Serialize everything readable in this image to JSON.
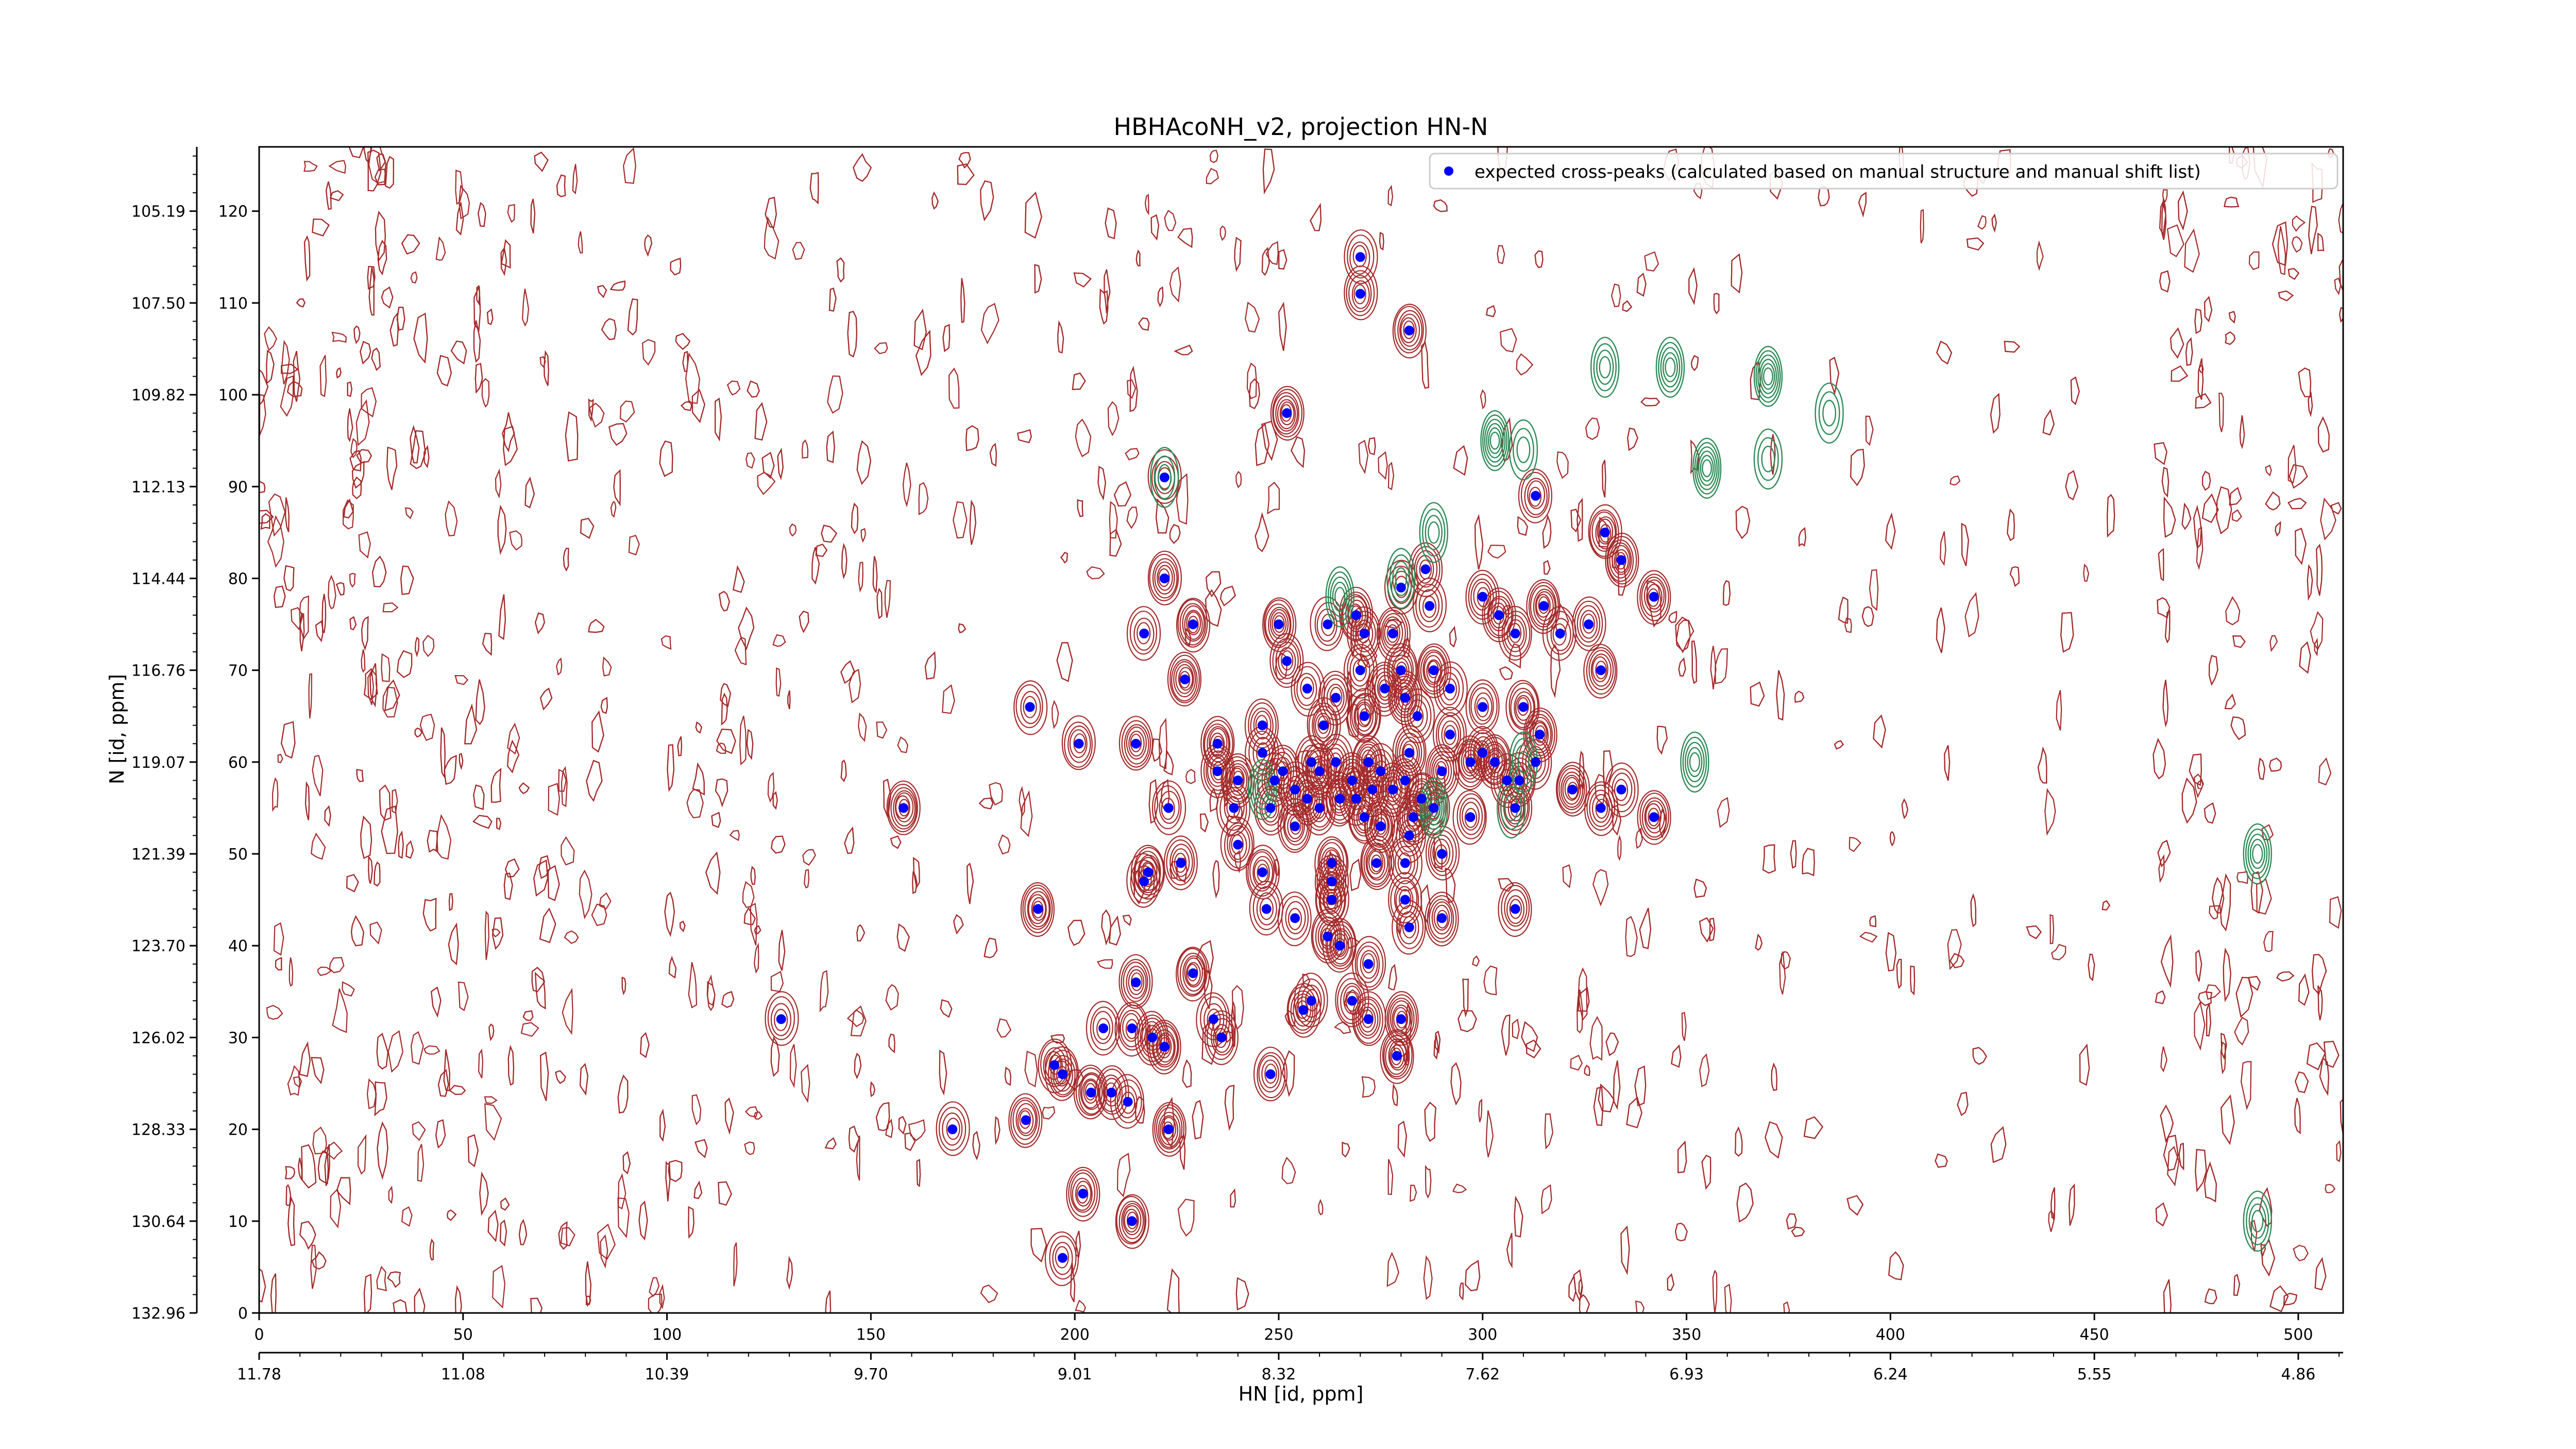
{
  "chart_data": {
    "type": "scatter",
    "title": "HBHAcoNH_v2, projection HN-N",
    "xlabel": "HN [id, ppm]",
    "ylabel": "N [id, ppm]",
    "x_index_ticks": [
      "0",
      "50",
      "100",
      "150",
      "200",
      "250",
      "300",
      "350",
      "400",
      "450",
      "500"
    ],
    "x_ppm_ticks": [
      "11.78",
      "11.08",
      "10.39",
      "9.70",
      "9.01",
      "8.32",
      "7.62",
      "6.93",
      "6.24",
      "5.55",
      "4.86"
    ],
    "y_index_ticks": [
      "0",
      "10",
      "20",
      "30",
      "40",
      "50",
      "60",
      "70",
      "80",
      "90",
      "100",
      "110",
      "120"
    ],
    "y_ppm_ticks": [
      "132.96",
      "130.64",
      "128.33",
      "126.02",
      "123.70",
      "121.39",
      "119.07",
      "116.76",
      "114.44",
      "112.13",
      "109.82",
      "107.50",
      "105.19"
    ],
    "xlim": [
      0,
      511
    ],
    "ylim": [
      0,
      127
    ],
    "grid": false,
    "legend": {
      "position": "top-right",
      "entries": [
        "expected cross-peaks (calculated based on manual structure and manual shift list)"
      ]
    },
    "colors": {
      "points": "#0000ff",
      "contour_positive": "#a52a2a",
      "contour_negative": "#2e8b57"
    },
    "series": [
      {
        "name": "expected cross-peaks (calculated based on manual structure and manual shift list)",
        "points": [
          [
            270,
            115
          ],
          [
            270,
            111
          ],
          [
            282,
            107
          ],
          [
            252,
            98
          ],
          [
            222,
            91
          ],
          [
            313,
            89
          ],
          [
            330,
            85
          ],
          [
            334,
            82
          ],
          [
            280,
            79
          ],
          [
            286,
            81
          ],
          [
            222,
            80
          ],
          [
            269,
            76
          ],
          [
            287,
            77
          ],
          [
            300,
            78
          ],
          [
            304,
            76
          ],
          [
            315,
            77
          ],
          [
            319,
            74
          ],
          [
            326,
            75
          ],
          [
            342,
            78
          ],
          [
            250,
            75
          ],
          [
            262,
            75
          ],
          [
            271,
            74
          ],
          [
            278,
            74
          ],
          [
            229,
            75
          ],
          [
            217,
            74
          ],
          [
            252,
            71
          ],
          [
            280,
            70
          ],
          [
            288,
            70
          ],
          [
            270,
            70
          ],
          [
            308,
            74
          ],
          [
            329,
            70
          ],
          [
            227,
            69
          ],
          [
            257,
            68
          ],
          [
            264,
            67
          ],
          [
            276,
            68
          ],
          [
            281,
            67
          ],
          [
            292,
            68
          ],
          [
            300,
            66
          ],
          [
            310,
            66
          ],
          [
            314,
            63
          ],
          [
            189,
            66
          ],
          [
            246,
            64
          ],
          [
            261,
            64
          ],
          [
            271,
            65
          ],
          [
            284,
            65
          ],
          [
            292,
            63
          ],
          [
            300,
            61
          ],
          [
            303,
            60
          ],
          [
            313,
            60
          ],
          [
            329,
            55
          ],
          [
            342,
            54
          ],
          [
            322,
            57
          ],
          [
            334,
            57
          ],
          [
            201,
            62
          ],
          [
            215,
            62
          ],
          [
            235,
            62
          ],
          [
            246,
            61
          ],
          [
            251,
            59
          ],
          [
            260,
            59
          ],
          [
            268,
            58
          ],
          [
            275,
            59
          ],
          [
            281,
            58
          ],
          [
            290,
            59
          ],
          [
            297,
            60
          ],
          [
            306,
            58
          ],
          [
            309,
            58
          ],
          [
            282,
            61
          ],
          [
            272,
            60
          ],
          [
            258,
            60
          ],
          [
            264,
            60
          ],
          [
            235,
            59
          ],
          [
            240,
            58
          ],
          [
            249,
            58
          ],
          [
            254,
            57
          ],
          [
            257,
            56
          ],
          [
            265,
            56
          ],
          [
            269,
            56
          ],
          [
            273,
            57
          ],
          [
            278,
            57
          ],
          [
            285,
            56
          ],
          [
            288,
            55
          ],
          [
            260,
            55
          ],
          [
            271,
            54
          ],
          [
            283,
            54
          ],
          [
            239,
            55
          ],
          [
            248,
            55
          ],
          [
            254,
            53
          ],
          [
            275,
            53
          ],
          [
            282,
            52
          ],
          [
            297,
            54
          ],
          [
            308,
            55
          ],
          [
            158,
            55
          ],
          [
            223,
            55
          ],
          [
            240,
            51
          ],
          [
            246,
            48
          ],
          [
            218,
            48
          ],
          [
            217,
            47
          ],
          [
            226,
            49
          ],
          [
            263,
            49
          ],
          [
            274,
            49
          ],
          [
            281,
            49
          ],
          [
            290,
            50
          ],
          [
            263,
            47
          ],
          [
            263,
            45
          ],
          [
            254,
            43
          ],
          [
            281,
            45
          ],
          [
            290,
            43
          ],
          [
            191,
            44
          ],
          [
            247,
            44
          ],
          [
            308,
            44
          ],
          [
            262,
            41
          ],
          [
            265,
            40
          ],
          [
            282,
            42
          ],
          [
            272,
            38
          ],
          [
            215,
            36
          ],
          [
            229,
            37
          ],
          [
            258,
            34
          ],
          [
            268,
            34
          ],
          [
            272,
            32
          ],
          [
            280,
            32
          ],
          [
            207,
            31
          ],
          [
            214,
            31
          ],
          [
            219,
            30
          ],
          [
            222,
            29
          ],
          [
            234,
            32
          ],
          [
            236,
            30
          ],
          [
            256,
            33
          ],
          [
            279,
            28
          ],
          [
            128,
            32
          ],
          [
            195,
            27
          ],
          [
            197,
            26
          ],
          [
            204,
            24
          ],
          [
            213,
            23
          ],
          [
            209,
            24
          ],
          [
            188,
            21
          ],
          [
            223,
            20
          ],
          [
            170,
            20
          ],
          [
            248,
            26
          ],
          [
            202,
            13
          ],
          [
            214,
            10
          ],
          [
            197,
            6
          ]
        ]
      }
    ]
  }
}
